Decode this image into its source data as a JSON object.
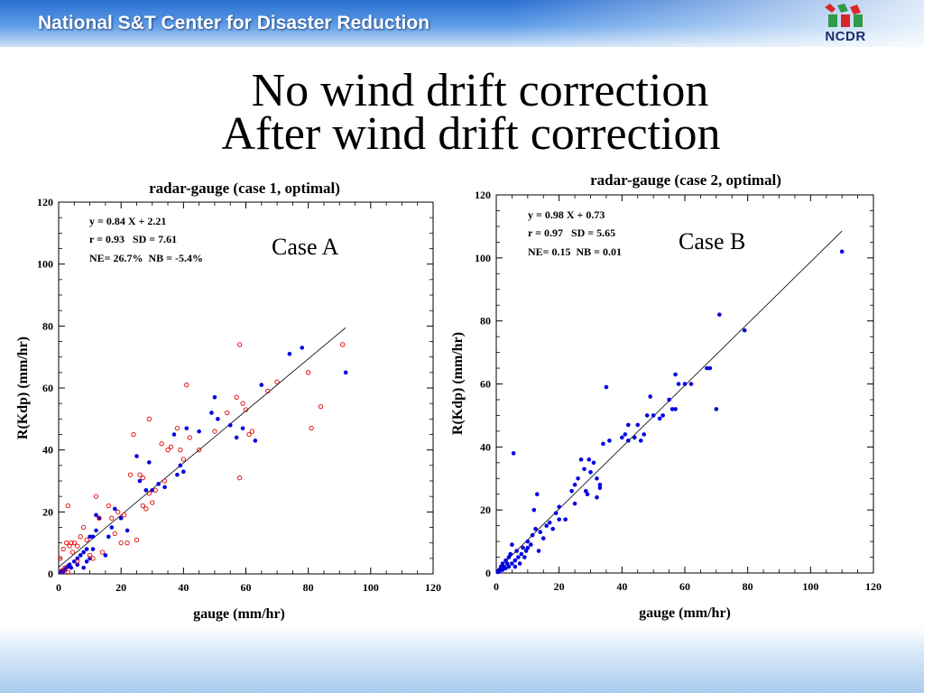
{
  "header": {
    "org_name": "National S&T Center for Disaster Reduction",
    "logo_text": "NCDR"
  },
  "titles": {
    "line1": "No wind drift correction",
    "line2": "After wind drift correction"
  },
  "colors": {
    "header_blue": "#2b6fd1",
    "series_blue": "#0000e0",
    "series_red": "#e00000"
  },
  "chart_data": [
    {
      "type": "scatter",
      "title": "radar-gauge (case 1, optimal)",
      "xlabel": "gauge (mm/hr)",
      "ylabel": "R(Kdp) (mm/hr)",
      "xlim": [
        0,
        120
      ],
      "ylim": [
        0,
        120
      ],
      "xticks": [
        "0",
        "20",
        "40",
        "60",
        "80",
        "100",
        "120"
      ],
      "yticks": [
        "0",
        "20",
        "40",
        "60",
        "80",
        "100",
        "120"
      ],
      "stats": [
        "y = 0.84 X + 2.21",
        "r = 0.93   SD = 7.61",
        "NE= 26.7%  NB = -5.4%"
      ],
      "case_label": "Case A",
      "fit_line": {
        "slope": 0.84,
        "intercept": 2.21,
        "x_range": [
          0,
          92
        ]
      },
      "series": [
        {
          "marker": "filled",
          "color": "#0000e0",
          "points": [
            [
              0.5,
              0.5
            ],
            [
              1,
              1
            ],
            [
              1.5,
              0.8
            ],
            [
              2,
              1.5
            ],
            [
              2.5,
              2
            ],
            [
              3,
              2.5
            ],
            [
              3.5,
              3
            ],
            [
              4,
              2
            ],
            [
              5,
              4
            ],
            [
              6,
              3
            ],
            [
              6,
              5
            ],
            [
              7,
              6
            ],
            [
              8,
              2
            ],
            [
              8,
              7
            ],
            [
              9,
              4
            ],
            [
              9,
              8
            ],
            [
              10,
              5
            ],
            [
              10,
              12
            ],
            [
              11,
              8
            ],
            [
              11,
              12
            ],
            [
              12,
              14
            ],
            [
              12,
              19
            ],
            [
              13,
              18
            ],
            [
              15,
              6
            ],
            [
              16,
              12
            ],
            [
              17,
              15
            ],
            [
              18,
              21
            ],
            [
              20,
              18
            ],
            [
              22,
              14
            ],
            [
              25,
              38
            ],
            [
              26,
              30
            ],
            [
              28,
              27
            ],
            [
              29,
              36
            ],
            [
              30,
              27
            ],
            [
              32,
              29
            ],
            [
              34,
              28
            ],
            [
              37,
              45
            ],
            [
              38,
              32
            ],
            [
              39,
              35
            ],
            [
              40,
              33
            ],
            [
              41,
              47
            ],
            [
              45,
              46
            ],
            [
              49,
              52
            ],
            [
              50,
              57
            ],
            [
              51,
              50
            ],
            [
              55,
              48
            ],
            [
              57,
              44
            ],
            [
              59,
              47
            ],
            [
              63,
              43
            ],
            [
              65,
              61
            ],
            [
              74,
              71
            ],
            [
              78,
              73
            ],
            [
              92,
              65
            ]
          ]
        },
        {
          "marker": "open",
          "color": "#e00000",
          "points": [
            [
              0.5,
              5
            ],
            [
              1,
              1
            ],
            [
              1.5,
              8
            ],
            [
              2,
              2
            ],
            [
              2.5,
              10
            ],
            [
              3,
              0.5
            ],
            [
              3,
              22
            ],
            [
              3.5,
              9
            ],
            [
              4,
              10
            ],
            [
              4.5,
              7
            ],
            [
              5,
              10
            ],
            [
              6,
              4
            ],
            [
              6,
              9
            ],
            [
              7,
              12
            ],
            [
              8,
              15
            ],
            [
              9,
              11
            ],
            [
              10,
              6
            ],
            [
              11,
              5
            ],
            [
              12,
              25
            ],
            [
              13,
              18
            ],
            [
              14,
              7
            ],
            [
              16,
              22
            ],
            [
              17,
              18
            ],
            [
              18,
              13
            ],
            [
              19,
              20
            ],
            [
              20,
              10
            ],
            [
              21,
              19
            ],
            [
              22,
              10
            ],
            [
              23,
              32
            ],
            [
              24,
              45
            ],
            [
              25,
              11
            ],
            [
              26,
              32
            ],
            [
              27,
              22
            ],
            [
              27,
              31
            ],
            [
              28,
              21
            ],
            [
              29,
              26
            ],
            [
              29,
              50
            ],
            [
              30,
              23
            ],
            [
              31,
              27
            ],
            [
              33,
              42
            ],
            [
              34,
              30
            ],
            [
              35,
              40
            ],
            [
              36,
              41
            ],
            [
              38,
              47
            ],
            [
              39,
              40
            ],
            [
              40,
              37
            ],
            [
              41,
              61
            ],
            [
              42,
              44
            ],
            [
              45,
              40
            ],
            [
              50,
              46
            ],
            [
              54,
              52
            ],
            [
              57,
              57
            ],
            [
              58,
              74
            ],
            [
              58,
              31
            ],
            [
              59,
              55
            ],
            [
              60,
              53
            ],
            [
              61,
              45
            ],
            [
              62,
              46
            ],
            [
              67,
              59
            ],
            [
              70,
              62
            ],
            [
              80,
              65
            ],
            [
              81,
              47
            ],
            [
              84,
              54
            ],
            [
              91,
              74
            ]
          ]
        }
      ]
    },
    {
      "type": "scatter",
      "title": "radar-gauge (case 2, optimal)",
      "xlabel": "gauge (mm/hr)",
      "ylabel": "R(Kdp) (mm/hr)",
      "xlim": [
        0,
        120
      ],
      "ylim": [
        0,
        120
      ],
      "xticks": [
        "0",
        "20",
        "40",
        "60",
        "80",
        "100",
        "120"
      ],
      "yticks": [
        "0",
        "20",
        "40",
        "60",
        "80",
        "100",
        "120"
      ],
      "stats": [
        "y = 0.98 X + 0.73",
        "r = 0.97   SD = 5.65",
        "NE= 0.15  NB = 0.01"
      ],
      "case_label": "Case B",
      "fit_line": {
        "slope": 0.98,
        "intercept": 0.73,
        "x_range": [
          0,
          110
        ]
      },
      "series": [
        {
          "marker": "filled",
          "color": "#0000e0",
          "points": [
            [
              0.5,
              0.3
            ],
            [
              1,
              1
            ],
            [
              1,
              0.5
            ],
            [
              1.5,
              2
            ],
            [
              2,
              1
            ],
            [
              2,
              3
            ],
            [
              2.5,
              2
            ],
            [
              3,
              4
            ],
            [
              3,
              1.5
            ],
            [
              3.5,
              3
            ],
            [
              4,
              2
            ],
            [
              4,
              5
            ],
            [
              4.5,
              6
            ],
            [
              5,
              3
            ],
            [
              5,
              9
            ],
            [
              5.5,
              38
            ],
            [
              6,
              2
            ],
            [
              6,
              4
            ],
            [
              6.5,
              7
            ],
            [
              7,
              5
            ],
            [
              7.5,
              3
            ],
            [
              8,
              6
            ],
            [
              8.5,
              8
            ],
            [
              9,
              5
            ],
            [
              9.5,
              7
            ],
            [
              10,
              10
            ],
            [
              10,
              8
            ],
            [
              11,
              9
            ],
            [
              11.5,
              12
            ],
            [
              12,
              20
            ],
            [
              12.5,
              14
            ],
            [
              13,
              25
            ],
            [
              13.5,
              7
            ],
            [
              14,
              13
            ],
            [
              15,
              11
            ],
            [
              16,
              15
            ],
            [
              17,
              16
            ],
            [
              18,
              14
            ],
            [
              19,
              19
            ],
            [
              20,
              21
            ],
            [
              20,
              17
            ],
            [
              22,
              17
            ],
            [
              24,
              26
            ],
            [
              25,
              22
            ],
            [
              25,
              28
            ],
            [
              26,
              30
            ],
            [
              27,
              36
            ],
            [
              28,
              33
            ],
            [
              28.5,
              26
            ],
            [
              29,
              25
            ],
            [
              29.5,
              36
            ],
            [
              30,
              32
            ],
            [
              31,
              35
            ],
            [
              32,
              24
            ],
            [
              32,
              30
            ],
            [
              33,
              28
            ],
            [
              33,
              27
            ],
            [
              34,
              41
            ],
            [
              35,
              59
            ],
            [
              36,
              42
            ],
            [
              40,
              43
            ],
            [
              41,
              44
            ],
            [
              42,
              42
            ],
            [
              42,
              47
            ],
            [
              44,
              43
            ],
            [
              45,
              47
            ],
            [
              46,
              42
            ],
            [
              47,
              44
            ],
            [
              48,
              50
            ],
            [
              49,
              56
            ],
            [
              50,
              50
            ],
            [
              52,
              49
            ],
            [
              53,
              50
            ],
            [
              55,
              55
            ],
            [
              56,
              52
            ],
            [
              57,
              52
            ],
            [
              57,
              63
            ],
            [
              58,
              60
            ],
            [
              60,
              60
            ],
            [
              62,
              60
            ],
            [
              67,
              65
            ],
            [
              68,
              65
            ],
            [
              70,
              52
            ],
            [
              71,
              82
            ],
            [
              79,
              77
            ],
            [
              110,
              102
            ]
          ]
        }
      ]
    }
  ]
}
